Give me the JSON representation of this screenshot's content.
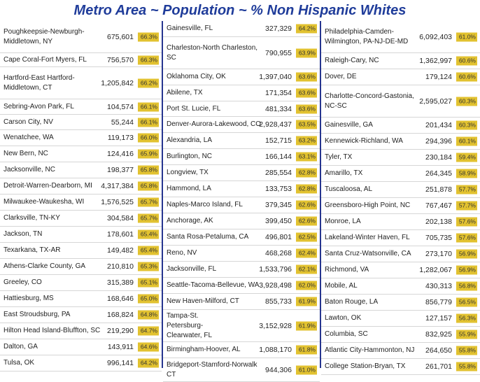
{
  "title": "Metro Area ~ Population ~ % Non Hispanic Whites",
  "accent_color": "#1f3c9a",
  "badge_color": "#e2c230",
  "columns": [
    [
      {
        "name": "Poughkeepsie-Newburgh-Middletown, NY",
        "pop": "675,601",
        "pct": "66.3%"
      },
      {
        "name": "Cape Coral-Fort Myers, FL",
        "pop": "756,570",
        "pct": "66.3%"
      },
      {
        "name": "Hartford-East Hartford-Middletown, CT",
        "pop": "1,205,842",
        "pct": "66.2%"
      },
      {
        "name": "Sebring-Avon Park, FL",
        "pop": "104,574",
        "pct": "66.1%"
      },
      {
        "name": "Carson City, NV",
        "pop": "55,244",
        "pct": "66.1%"
      },
      {
        "name": "Wenatchee, WA",
        "pop": "119,173",
        "pct": "66.0%"
      },
      {
        "name": "New Bern, NC",
        "pop": "124,416",
        "pct": "65.9%"
      },
      {
        "name": "Jacksonville, NC",
        "pop": "198,377",
        "pct": "65.8%"
      },
      {
        "name": "Detroit-Warren-Dearborn, MI",
        "pop": "4,317,384",
        "pct": "65.8%"
      },
      {
        "name": "Milwaukee-Waukesha, WI",
        "pop": "1,576,525",
        "pct": "65.7%"
      },
      {
        "name": "Clarksville, TN-KY",
        "pop": "304,584",
        "pct": "65.7%"
      },
      {
        "name": "Jackson, TN",
        "pop": "178,601",
        "pct": "65.4%"
      },
      {
        "name": "Texarkana, TX-AR",
        "pop": "149,482",
        "pct": "65.4%"
      },
      {
        "name": "Athens-Clarke County, GA",
        "pop": "210,810",
        "pct": "65.3%"
      },
      {
        "name": "Greeley, CO",
        "pop": "315,389",
        "pct": "65.1%"
      },
      {
        "name": "Hattiesburg, MS",
        "pop": "168,646",
        "pct": "65.0%"
      },
      {
        "name": "East Stroudsburg, PA",
        "pop": "168,824",
        "pct": "64.8%"
      },
      {
        "name": "Hilton Head Island-Bluffton, SC",
        "pop": "219,290",
        "pct": "64.7%"
      },
      {
        "name": "Dalton, GA",
        "pop": "143,911",
        "pct": "64.6%"
      },
      {
        "name": "Tulsa, OK",
        "pop": "996,141",
        "pct": "64.2%"
      }
    ],
    [
      {
        "name": "Gainesville, FL",
        "pop": "327,329",
        "pct": "64.2%"
      },
      {
        "name": "Charleston-North Charleston, SC",
        "pop": "790,955",
        "pct": "63.9%"
      },
      {
        "name": "Oklahoma City, OK",
        "pop": "1,397,040",
        "pct": "63.6%"
      },
      {
        "name": "Abilene, TX",
        "pop": "171,354",
        "pct": "63.6%"
      },
      {
        "name": "Port St. Lucie, FL",
        "pop": "481,334",
        "pct": "63.6%"
      },
      {
        "name": "Denver-Aurora-Lakewood, CO",
        "pop": "2,928,437",
        "pct": "63.5%"
      },
      {
        "name": "Alexandria, LA",
        "pop": "152,715",
        "pct": "63.2%"
      },
      {
        "name": "Burlington, NC",
        "pop": "166,144",
        "pct": "63.1%"
      },
      {
        "name": "Longview, TX",
        "pop": "285,554",
        "pct": "62.8%"
      },
      {
        "name": "Hammond, LA",
        "pop": "133,753",
        "pct": "62.8%"
      },
      {
        "name": "Naples-Marco Island, FL",
        "pop": "379,345",
        "pct": "62.6%"
      },
      {
        "name": "Anchorage, AK",
        "pop": "399,450",
        "pct": "62.6%"
      },
      {
        "name": "Santa Rosa-Petaluma, CA",
        "pop": "496,801",
        "pct": "62.5%"
      },
      {
        "name": "Reno, NV",
        "pop": "468,268",
        "pct": "62.4%"
      },
      {
        "name": "Jacksonville, FL",
        "pop": "1,533,796",
        "pct": "62.1%"
      },
      {
        "name": "Seattle-Tacoma-Bellevue, WA",
        "pop": "3,928,498",
        "pct": "62.0%"
      },
      {
        "name": "New Haven-Milford, CT",
        "pop": "855,733",
        "pct": "61.9%"
      },
      {
        "name": "Tampa-St. Petersburg-Clearwater, FL",
        "pop": "3,152,928",
        "pct": "61.9%"
      },
      {
        "name": "Birmingham-Hoover, AL",
        "pop": "1,088,170",
        "pct": "61.8%"
      },
      {
        "name": "Bridgeport-Stamford-Norwalk CT",
        "pop": "944,306",
        "pct": "61.0%"
      }
    ],
    [
      {
        "name": "Philadelphia-Camden-Wilmington, PA-NJ-DE-MD",
        "pop": "6,092,403",
        "pct": "61.0%"
      },
      {
        "name": "Raleigh-Cary, NC",
        "pop": "1,362,997",
        "pct": "60.6%"
      },
      {
        "name": "Dover, DE",
        "pop": "179,124",
        "pct": "60.6%"
      },
      {
        "name": "Charlotte-Concord-Gastonia, NC-SC",
        "pop": "2,595,027",
        "pct": "60.3%"
      },
      {
        "name": "Gainesville, GA",
        "pop": "201,434",
        "pct": "60.3%"
      },
      {
        "name": "Kennewick-Richland, WA",
        "pop": "294,396",
        "pct": "60.1%"
      },
      {
        "name": "Tyler, TX",
        "pop": "230,184",
        "pct": "59.4%"
      },
      {
        "name": "Amarillo, TX",
        "pop": "264,345",
        "pct": "58.9%"
      },
      {
        "name": "Tuscaloosa, AL",
        "pop": "251,878",
        "pct": "57.7%"
      },
      {
        "name": "Greensboro-High Point, NC",
        "pop": "767,467",
        "pct": "57.7%"
      },
      {
        "name": "Monroe, LA",
        "pop": "202,138",
        "pct": "57.6%"
      },
      {
        "name": "Lakeland-Winter Haven, FL",
        "pop": "705,735",
        "pct": "57.6%"
      },
      {
        "name": "Santa Cruz-Watsonville, CA",
        "pop": "273,170",
        "pct": "56.9%"
      },
      {
        "name": "Richmond, VA",
        "pop": "1,282,067",
        "pct": "56.9%"
      },
      {
        "name": "Mobile, AL",
        "pop": "430,313",
        "pct": "56.8%"
      },
      {
        "name": "Baton Rouge, LA",
        "pop": "856,779",
        "pct": "56.5%"
      },
      {
        "name": "Lawton, OK",
        "pop": "127,157",
        "pct": "56.3%"
      },
      {
        "name": "Columbia, SC",
        "pop": "832,925",
        "pct": "55.9%"
      },
      {
        "name": "Atlantic City-Hammonton, NJ",
        "pop": "264,650",
        "pct": "55.8%"
      },
      {
        "name": "College Station-Bryan, TX",
        "pop": "261,701",
        "pct": "55.8%"
      }
    ]
  ]
}
